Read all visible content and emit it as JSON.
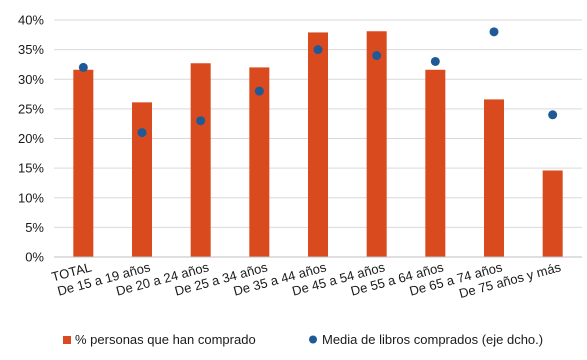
{
  "chart_data": {
    "type": "bar",
    "title": "",
    "xlabel": "",
    "ylabel": "",
    "ylim": [
      0,
      40
    ],
    "y_ticks": [
      "0%",
      "5%",
      "10%",
      "15%",
      "20%",
      "25%",
      "30%",
      "35%",
      "40%"
    ],
    "grid": true,
    "legend_position": "bottom",
    "categories": [
      "TOTAL",
      "De 15 a 19 años",
      "De 20 a 24 años",
      "De 25 a 34 años",
      "De 35 a 44 años",
      "De 45 a 54 años",
      "De 55 a 64 años",
      "De 65 a 74 años",
      "De 75 años y más"
    ],
    "series": [
      {
        "name": "% personas que han comprado",
        "type": "bar",
        "color": "#d94a1e",
        "values": [
          31.6,
          26.1,
          32.7,
          32.0,
          37.9,
          38.1,
          31.6,
          26.6,
          14.6
        ]
      },
      {
        "name": "Media de libros comprados (eje dcho.)",
        "type": "scatter",
        "color": "#1f5a96",
        "values": [
          32.0,
          21.0,
          23.0,
          28.0,
          35.0,
          34.0,
          33.0,
          38.0,
          24.0
        ]
      }
    ]
  }
}
